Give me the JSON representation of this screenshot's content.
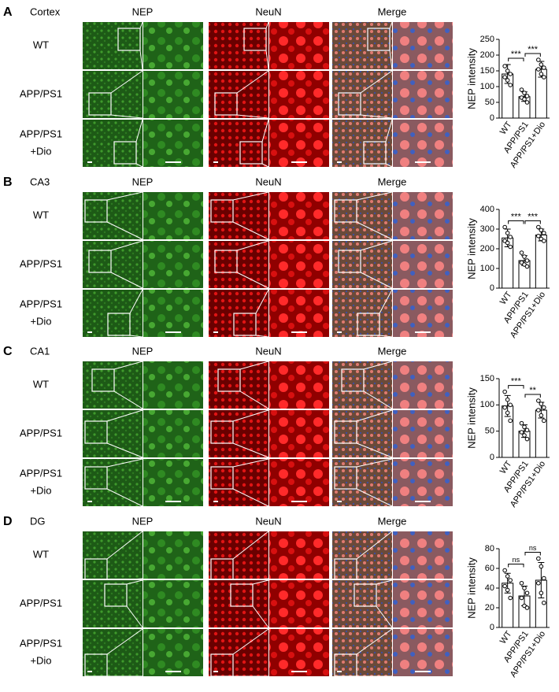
{
  "panels": [
    {
      "letter": "A",
      "region": "Cortex",
      "headers": [
        "NEP",
        "NeuN",
        "Merge"
      ],
      "rows": [
        [
          "WT"
        ],
        [
          "APP/PS1"
        ],
        [
          "APP/PS1",
          "+Dio"
        ]
      ]
    },
    {
      "letter": "B",
      "region": "CA3",
      "headers": [
        "NEP",
        "NeuN",
        "Merge"
      ],
      "rows": [
        [
          "WT"
        ],
        [
          "APP/PS1"
        ],
        [
          "APP/PS1",
          "+Dio"
        ]
      ]
    },
    {
      "letter": "C",
      "region": "CA1",
      "headers": [
        "NEP",
        "NeuN",
        "Merge"
      ],
      "rows": [
        [
          "WT"
        ],
        [
          "APP/PS1"
        ],
        [
          "APP/PS1",
          "+Dio"
        ]
      ]
    },
    {
      "letter": "D",
      "region": "DG",
      "headers": [
        "NEP",
        "NeuN",
        "Merge"
      ],
      "rows": [
        [
          "WT"
        ],
        [
          "APP/PS1"
        ],
        [
          "APP/PS1",
          "+Dio"
        ]
      ]
    }
  ],
  "chart_data": [
    {
      "type": "bar",
      "ylabel": "NEP intensity",
      "categories": [
        "WT",
        "APP/PS1",
        "APP/PS1+Dio"
      ],
      "values": [
        140,
        68,
        155
      ],
      "errors": [
        30,
        15,
        25
      ],
      "points": [
        [
          165,
          150,
          140,
          130,
          120,
          105
        ],
        [
          90,
          80,
          70,
          65,
          60,
          50
        ],
        [
          185,
          170,
          160,
          155,
          140,
          130
        ]
      ],
      "significance": [
        "***",
        "***"
      ],
      "ylim": [
        0,
        250
      ],
      "yticks": [
        0,
        50,
        100,
        150,
        200,
        250
      ],
      "color": "#ffffff"
    },
    {
      "type": "bar",
      "ylabel": "NEP intensity",
      "categories": [
        "WT",
        "APP/PS1",
        "APP/PS1+Dio"
      ],
      "values": [
        255,
        140,
        270
      ],
      "errors": [
        45,
        25,
        30
      ],
      "points": [
        [
          310,
          280,
          260,
          240,
          230,
          210
        ],
        [
          180,
          160,
          140,
          130,
          120,
          110
        ],
        [
          310,
          295,
          280,
          265,
          250,
          240
        ]
      ],
      "significance": [
        "***",
        "***"
      ],
      "ylim": [
        0,
        400
      ],
      "yticks": [
        0,
        100,
        200,
        300,
        400
      ],
      "color": "#ffffff"
    },
    {
      "type": "bar",
      "ylabel": "NEP intensity",
      "categories": [
        "WT",
        "APP/PS1",
        "APP/PS1+Dio"
      ],
      "values": [
        98,
        50,
        90
      ],
      "errors": [
        20,
        12,
        15
      ],
      "points": [
        [
          125,
          110,
          100,
          95,
          85,
          70
        ],
        [
          65,
          58,
          52,
          48,
          42,
          35
        ],
        [
          108,
          102,
          95,
          90,
          80,
          70
        ]
      ],
      "significance": [
        "***",
        "**"
      ],
      "ylim": [
        0,
        150
      ],
      "yticks": [
        0,
        50,
        100,
        150
      ],
      "color": "#ffffff"
    },
    {
      "type": "bar",
      "ylabel": "NEP intensity",
      "categories": [
        "WT",
        "APP/PS1",
        "APP/PS1+Dio"
      ],
      "values": [
        45,
        32,
        48
      ],
      "errors": [
        10,
        10,
        18
      ],
      "points": [
        [
          58,
          52,
          48,
          42,
          38,
          30
        ],
        [
          45,
          40,
          35,
          30,
          22,
          20
        ],
        [
          70,
          62,
          50,
          45,
          35,
          25
        ]
      ],
      "significance": [
        "ns",
        "ns"
      ],
      "ylim": [
        0,
        80
      ],
      "yticks": [
        0,
        20,
        40,
        60,
        80
      ],
      "color": "#ffffff"
    }
  ]
}
